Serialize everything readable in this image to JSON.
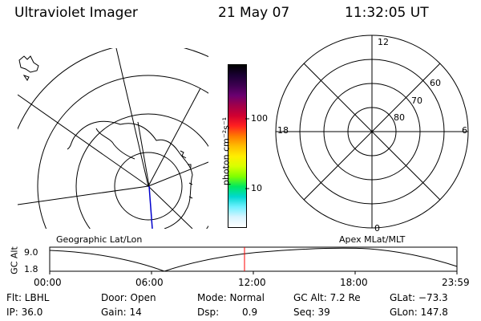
{
  "header": {
    "instrument": "Ultraviolet Imager",
    "date": "21 May 07",
    "time": "11:32:05 UT"
  },
  "geo_panel": {
    "caption": "Geographic Lat/Lon"
  },
  "colorbar": {
    "unit_label": "photon cm⁻²s⁻¹",
    "ticks": [
      "100",
      "10"
    ],
    "colors": [
      "#000000",
      "#1a0033",
      "#3d0050",
      "#6a0070",
      "#a0004a",
      "#d00030",
      "#ff2020",
      "#ff7a00",
      "#ffbd00",
      "#ffee00",
      "#d8ff00",
      "#80ff00",
      "#00e860",
      "#00d8d0",
      "#6ef0ff",
      "#d8f4ff",
      "#ffffff"
    ]
  },
  "polar_panel": {
    "caption": "Apex MLat/MLT",
    "mlt_labels": {
      "top": "12",
      "left": "18",
      "right": "6",
      "bottom": "0"
    },
    "lat_labels": [
      "60",
      "70",
      "80"
    ]
  },
  "altitude_plot": {
    "ylabel": "GC Alt",
    "yticks": [
      "9.0",
      "1.8"
    ],
    "xticks": [
      "00:00",
      "06:00",
      "12:00",
      "18:00",
      "23:59"
    ],
    "marker_color": "#ff0000"
  },
  "status": {
    "flt": "Flt: LBHL",
    "ip": "IP: 36.0",
    "door": "Door: Open",
    "gain": "Gain: 14",
    "mode": "Mode: Normal",
    "dsp_label": "Dsp:",
    "dsp_value": "0.9",
    "gc_alt": "GC Alt: 7.2 Re",
    "seq": "Seq: 39",
    "glat": "GLat: −73.3",
    "glon": "GLon: 147.8"
  }
}
